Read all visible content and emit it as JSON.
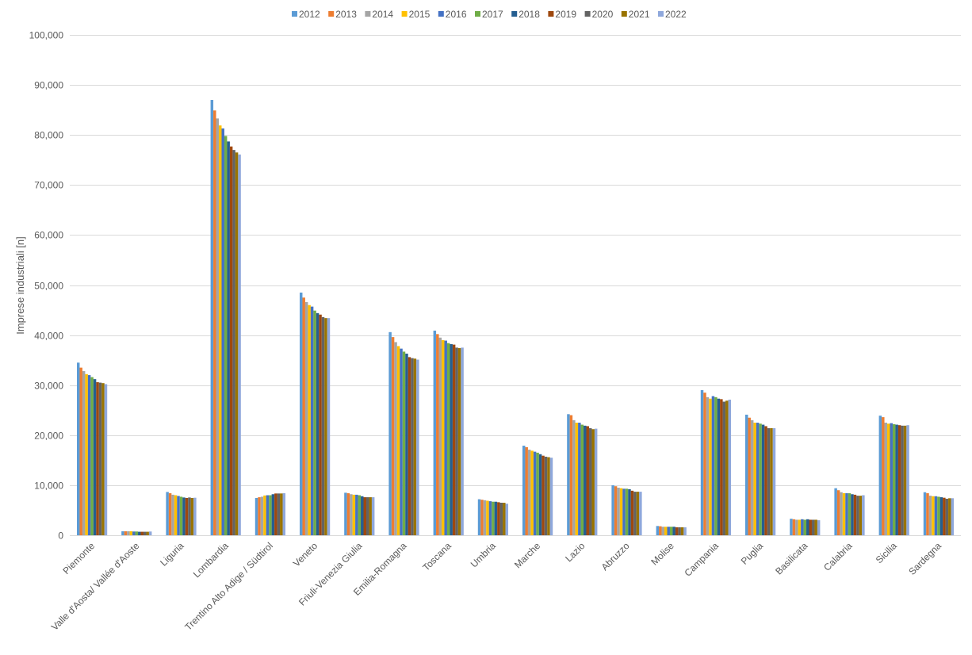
{
  "chart_data": {
    "type": "bar",
    "title": "",
    "xlabel": "",
    "ylabel": "Imprese industriali [n]",
    "ylim": [
      0,
      100000
    ],
    "yticks": [
      "0",
      "10,000",
      "20,000",
      "30,000",
      "40,000",
      "50,000",
      "60,000",
      "70,000",
      "80,000",
      "90,000",
      "100,000"
    ],
    "grid": true,
    "legend_position": "top",
    "categories": [
      "Piemonte",
      "Valle d'Aosta/ Vallée d'Aoste",
      "Liguria",
      "Lombardia",
      "Trentino Alto Adige / Südtirol",
      "Veneto",
      "Friuli-Venezia Giulia",
      "Emilia-Romagna",
      "Toscana",
      "Umbria",
      "Marche",
      "Lazio",
      "Abruzzo",
      "Molise",
      "Campania",
      "Puglia",
      "Basilicata",
      "Calabria",
      "Sicilia",
      "Sardegna"
    ],
    "series": [
      {
        "name": "2012",
        "color": "#5B9BD5",
        "values": [
          34500,
          800,
          8650,
          87000,
          7450,
          48500,
          8500,
          40600,
          40900,
          7200,
          17900,
          24200,
          10000,
          1850,
          29000,
          24100,
          3300,
          9400,
          23900,
          8600
        ]
      },
      {
        "name": "2013",
        "color": "#ED7D31",
        "values": [
          33500,
          800,
          8400,
          84900,
          7600,
          47500,
          8400,
          39600,
          40200,
          7100,
          17600,
          24000,
          9800,
          1800,
          28500,
          23500,
          3200,
          9000,
          23600,
          8400
        ]
      },
      {
        "name": "2014",
        "color": "#A5A5A5",
        "values": [
          32800,
          800,
          8100,
          83300,
          7700,
          46600,
          8200,
          38600,
          39500,
          7000,
          17100,
          23000,
          9500,
          1700,
          27600,
          23000,
          3100,
          8600,
          22500,
          7900
        ]
      },
      {
        "name": "2015",
        "color": "#FFC000",
        "values": [
          32200,
          800,
          8000,
          81900,
          7950,
          46000,
          8100,
          37800,
          39000,
          6900,
          16900,
          22500,
          9400,
          1700,
          27300,
          22500,
          3100,
          8400,
          22300,
          7800
        ]
      },
      {
        "name": "2016",
        "color": "#4472C4",
        "values": [
          32000,
          750,
          7850,
          81300,
          8000,
          45700,
          8100,
          37300,
          38900,
          6800,
          16700,
          22500,
          9300,
          1700,
          27800,
          22500,
          3200,
          8400,
          22400,
          7800
        ]
      },
      {
        "name": "2017",
        "color": "#70AD47",
        "values": [
          31600,
          750,
          7700,
          79800,
          8000,
          44900,
          8000,
          36700,
          38400,
          6700,
          16500,
          22100,
          9300,
          1700,
          27600,
          22300,
          3100,
          8400,
          22200,
          7700
        ]
      },
      {
        "name": "2018",
        "color": "#255E91",
        "values": [
          31200,
          700,
          7550,
          78700,
          8200,
          44400,
          7800,
          36300,
          38200,
          6700,
          16200,
          21900,
          9200,
          1700,
          27300,
          22100,
          3200,
          8200,
          22100,
          7600
        ]
      },
      {
        "name": "2019",
        "color": "#9E480E",
        "values": [
          30600,
          700,
          7450,
          77700,
          8350,
          44100,
          7600,
          35600,
          38100,
          6600,
          15900,
          21800,
          8900,
          1600,
          27200,
          21800,
          3100,
          8100,
          22000,
          7500
        ]
      },
      {
        "name": "2020",
        "color": "#636363",
        "values": [
          30500,
          700,
          7550,
          77000,
          8350,
          43600,
          7600,
          35400,
          37500,
          6500,
          15700,
          21400,
          8700,
          1600,
          26700,
          21400,
          3100,
          7900,
          21900,
          7300
        ]
      },
      {
        "name": "2021",
        "color": "#997300",
        "values": [
          30400,
          700,
          7450,
          76500,
          8350,
          43400,
          7600,
          35300,
          37400,
          6500,
          15600,
          21200,
          8700,
          1600,
          26900,
          21400,
          3100,
          7900,
          21900,
          7400
        ]
      },
      {
        "name": "2022",
        "color": "#8FA8DC",
        "values": [
          30200,
          750,
          7500,
          76100,
          8400,
          43400,
          7600,
          35100,
          37500,
          6300,
          15500,
          21300,
          8700,
          1600,
          27100,
          21400,
          3000,
          8000,
          22000,
          7400
        ]
      }
    ]
  }
}
